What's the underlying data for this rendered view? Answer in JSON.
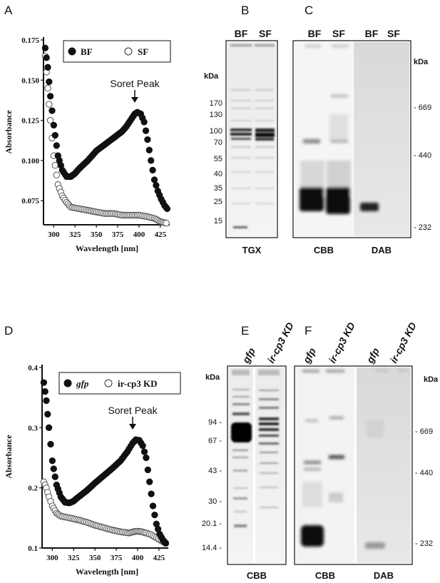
{
  "panels": {
    "A": {
      "letter": "A"
    },
    "B": {
      "letter": "B",
      "lanes": [
        "BF",
        "SF"
      ],
      "kda_label": "kDa",
      "markers": [
        "170",
        "130",
        "100",
        "70",
        "55",
        "40",
        "35",
        "25",
        "15"
      ],
      "caption": "TGX"
    },
    "C": {
      "letter": "C",
      "lanes": [
        "BF",
        "SF",
        "BF",
        "SF"
      ],
      "kda_label": "kDa",
      "markers": [
        "669",
        "440",
        "232"
      ],
      "captions": [
        "CBB",
        "DAB"
      ]
    },
    "D": {
      "letter": "D"
    },
    "E": {
      "letter": "E",
      "lanes": [
        "gfp",
        "ir-cp3 KD"
      ],
      "kda_label": "kDa",
      "markers": [
        "94",
        "67",
        "43",
        "30",
        "20.1",
        "14.4"
      ],
      "caption": "CBB"
    },
    "F": {
      "letter": "F",
      "lanes": [
        "gfp",
        "ir-cp3 KD",
        "gfp",
        "ir-cp3 KD"
      ],
      "kda_label": "kDa",
      "markers": [
        "669",
        "440",
        "232"
      ],
      "captions": [
        "CBB",
        "DAB"
      ]
    }
  },
  "chart_data": [
    {
      "type": "scatter",
      "panel": "A",
      "xlabel": "Wavelength [nm]",
      "ylabel": "Absorbance",
      "xlim": [
        288,
        436
      ],
      "ylim": [
        0.06,
        0.175
      ],
      "xticks": [
        300,
        325,
        350,
        375,
        400,
        425
      ],
      "yticks": [
        0.075,
        0.1,
        0.125,
        0.15,
        0.175
      ],
      "ytick_labels": [
        "0.075",
        "0.100",
        "0.125",
        "0.150",
        "0.175"
      ],
      "legend_position": "top-right",
      "series": [
        {
          "name": "BF",
          "marker": "filled",
          "points": [
            [
              290,
              0.17
            ],
            [
              293,
              0.158
            ],
            [
              296,
              0.14
            ],
            [
              300,
              0.122
            ],
            [
              305,
              0.103
            ],
            [
              310,
              0.094
            ],
            [
              315,
              0.09
            ],
            [
              320,
              0.09
            ],
            [
              325,
              0.092
            ],
            [
              330,
              0.095
            ],
            [
              340,
              0.1
            ],
            [
              350,
              0.106
            ],
            [
              360,
              0.11
            ],
            [
              370,
              0.114
            ],
            [
              375,
              0.116
            ],
            [
              380,
              0.118
            ],
            [
              385,
              0.121
            ],
            [
              390,
              0.125
            ],
            [
              395,
              0.129
            ],
            [
              398,
              0.13
            ],
            [
              402,
              0.129
            ],
            [
              406,
              0.124
            ],
            [
              410,
              0.113
            ],
            [
              414,
              0.1
            ],
            [
              418,
              0.088
            ],
            [
              422,
              0.081
            ],
            [
              426,
              0.076
            ],
            [
              430,
              0.072
            ],
            [
              433,
              0.07
            ]
          ]
        },
        {
          "name": "SF",
          "marker": "open",
          "points": [
            [
              290,
              0.165
            ],
            [
              293,
              0.145
            ],
            [
              296,
              0.125
            ],
            [
              300,
              0.103
            ],
            [
              305,
              0.085
            ],
            [
              310,
              0.078
            ],
            [
              315,
              0.074
            ],
            [
              320,
              0.071
            ],
            [
              330,
              0.07
            ],
            [
              340,
              0.069
            ],
            [
              350,
              0.068
            ],
            [
              360,
              0.067
            ],
            [
              370,
              0.067
            ],
            [
              380,
              0.066
            ],
            [
              390,
              0.066
            ],
            [
              400,
              0.066
            ],
            [
              410,
              0.065
            ],
            [
              418,
              0.064
            ],
            [
              425,
              0.062
            ],
            [
              432,
              0.061
            ]
          ]
        }
      ],
      "annotations": [
        {
          "text": "Soret Peak",
          "x": 398,
          "y": 0.13
        }
      ]
    },
    {
      "type": "scatter",
      "panel": "D",
      "xlabel": "Wavelength [nm]",
      "ylabel": "Absorbance",
      "xlim": [
        288,
        436
      ],
      "ylim": [
        0.1,
        0.4
      ],
      "xticks": [
        300,
        325,
        350,
        375,
        400,
        425
      ],
      "yticks": [
        0.1,
        0.2,
        0.3,
        0.4
      ],
      "ytick_labels": [
        "0.1",
        "0.2",
        "0.3",
        "0.4"
      ],
      "legend_position": "top-right",
      "series": [
        {
          "name": "gfp",
          "marker": "filled",
          "points": [
            [
              290,
              0.375
            ],
            [
              293,
              0.345
            ],
            [
              296,
              0.3
            ],
            [
              300,
              0.245
            ],
            [
              305,
              0.205
            ],
            [
              310,
              0.185
            ],
            [
              315,
              0.176
            ],
            [
              320,
              0.175
            ],
            [
              325,
              0.178
            ],
            [
              330,
              0.184
            ],
            [
              340,
              0.195
            ],
            [
              350,
              0.208
            ],
            [
              360,
              0.22
            ],
            [
              370,
              0.232
            ],
            [
              380,
              0.245
            ],
            [
              388,
              0.26
            ],
            [
              394,
              0.274
            ],
            [
              398,
              0.28
            ],
            [
              402,
              0.279
            ],
            [
              406,
              0.27
            ],
            [
              410,
              0.25
            ],
            [
              414,
              0.21
            ],
            [
              418,
              0.17
            ],
            [
              422,
              0.14
            ],
            [
              426,
              0.123
            ],
            [
              430,
              0.113
            ],
            [
              433,
              0.108
            ]
          ]
        },
        {
          "name": "ir-cp3 KD",
          "marker": "open",
          "points": [
            [
              290,
              0.21
            ],
            [
              293,
              0.2
            ],
            [
              296,
              0.185
            ],
            [
              300,
              0.17
            ],
            [
              305,
              0.158
            ],
            [
              310,
              0.153
            ],
            [
              320,
              0.15
            ],
            [
              330,
              0.147
            ],
            [
              340,
              0.143
            ],
            [
              350,
              0.138
            ],
            [
              360,
              0.134
            ],
            [
              370,
              0.13
            ],
            [
              380,
              0.127
            ],
            [
              390,
              0.125
            ],
            [
              395,
              0.127
            ],
            [
              400,
              0.128
            ],
            [
              405,
              0.127
            ],
            [
              410,
              0.125
            ],
            [
              416,
              0.122
            ],
            [
              422,
              0.117
            ],
            [
              428,
              0.112
            ],
            [
              433,
              0.108
            ]
          ]
        }
      ],
      "annotations": [
        {
          "text": "Soret Peak",
          "x": 398,
          "y": 0.28
        }
      ]
    }
  ]
}
